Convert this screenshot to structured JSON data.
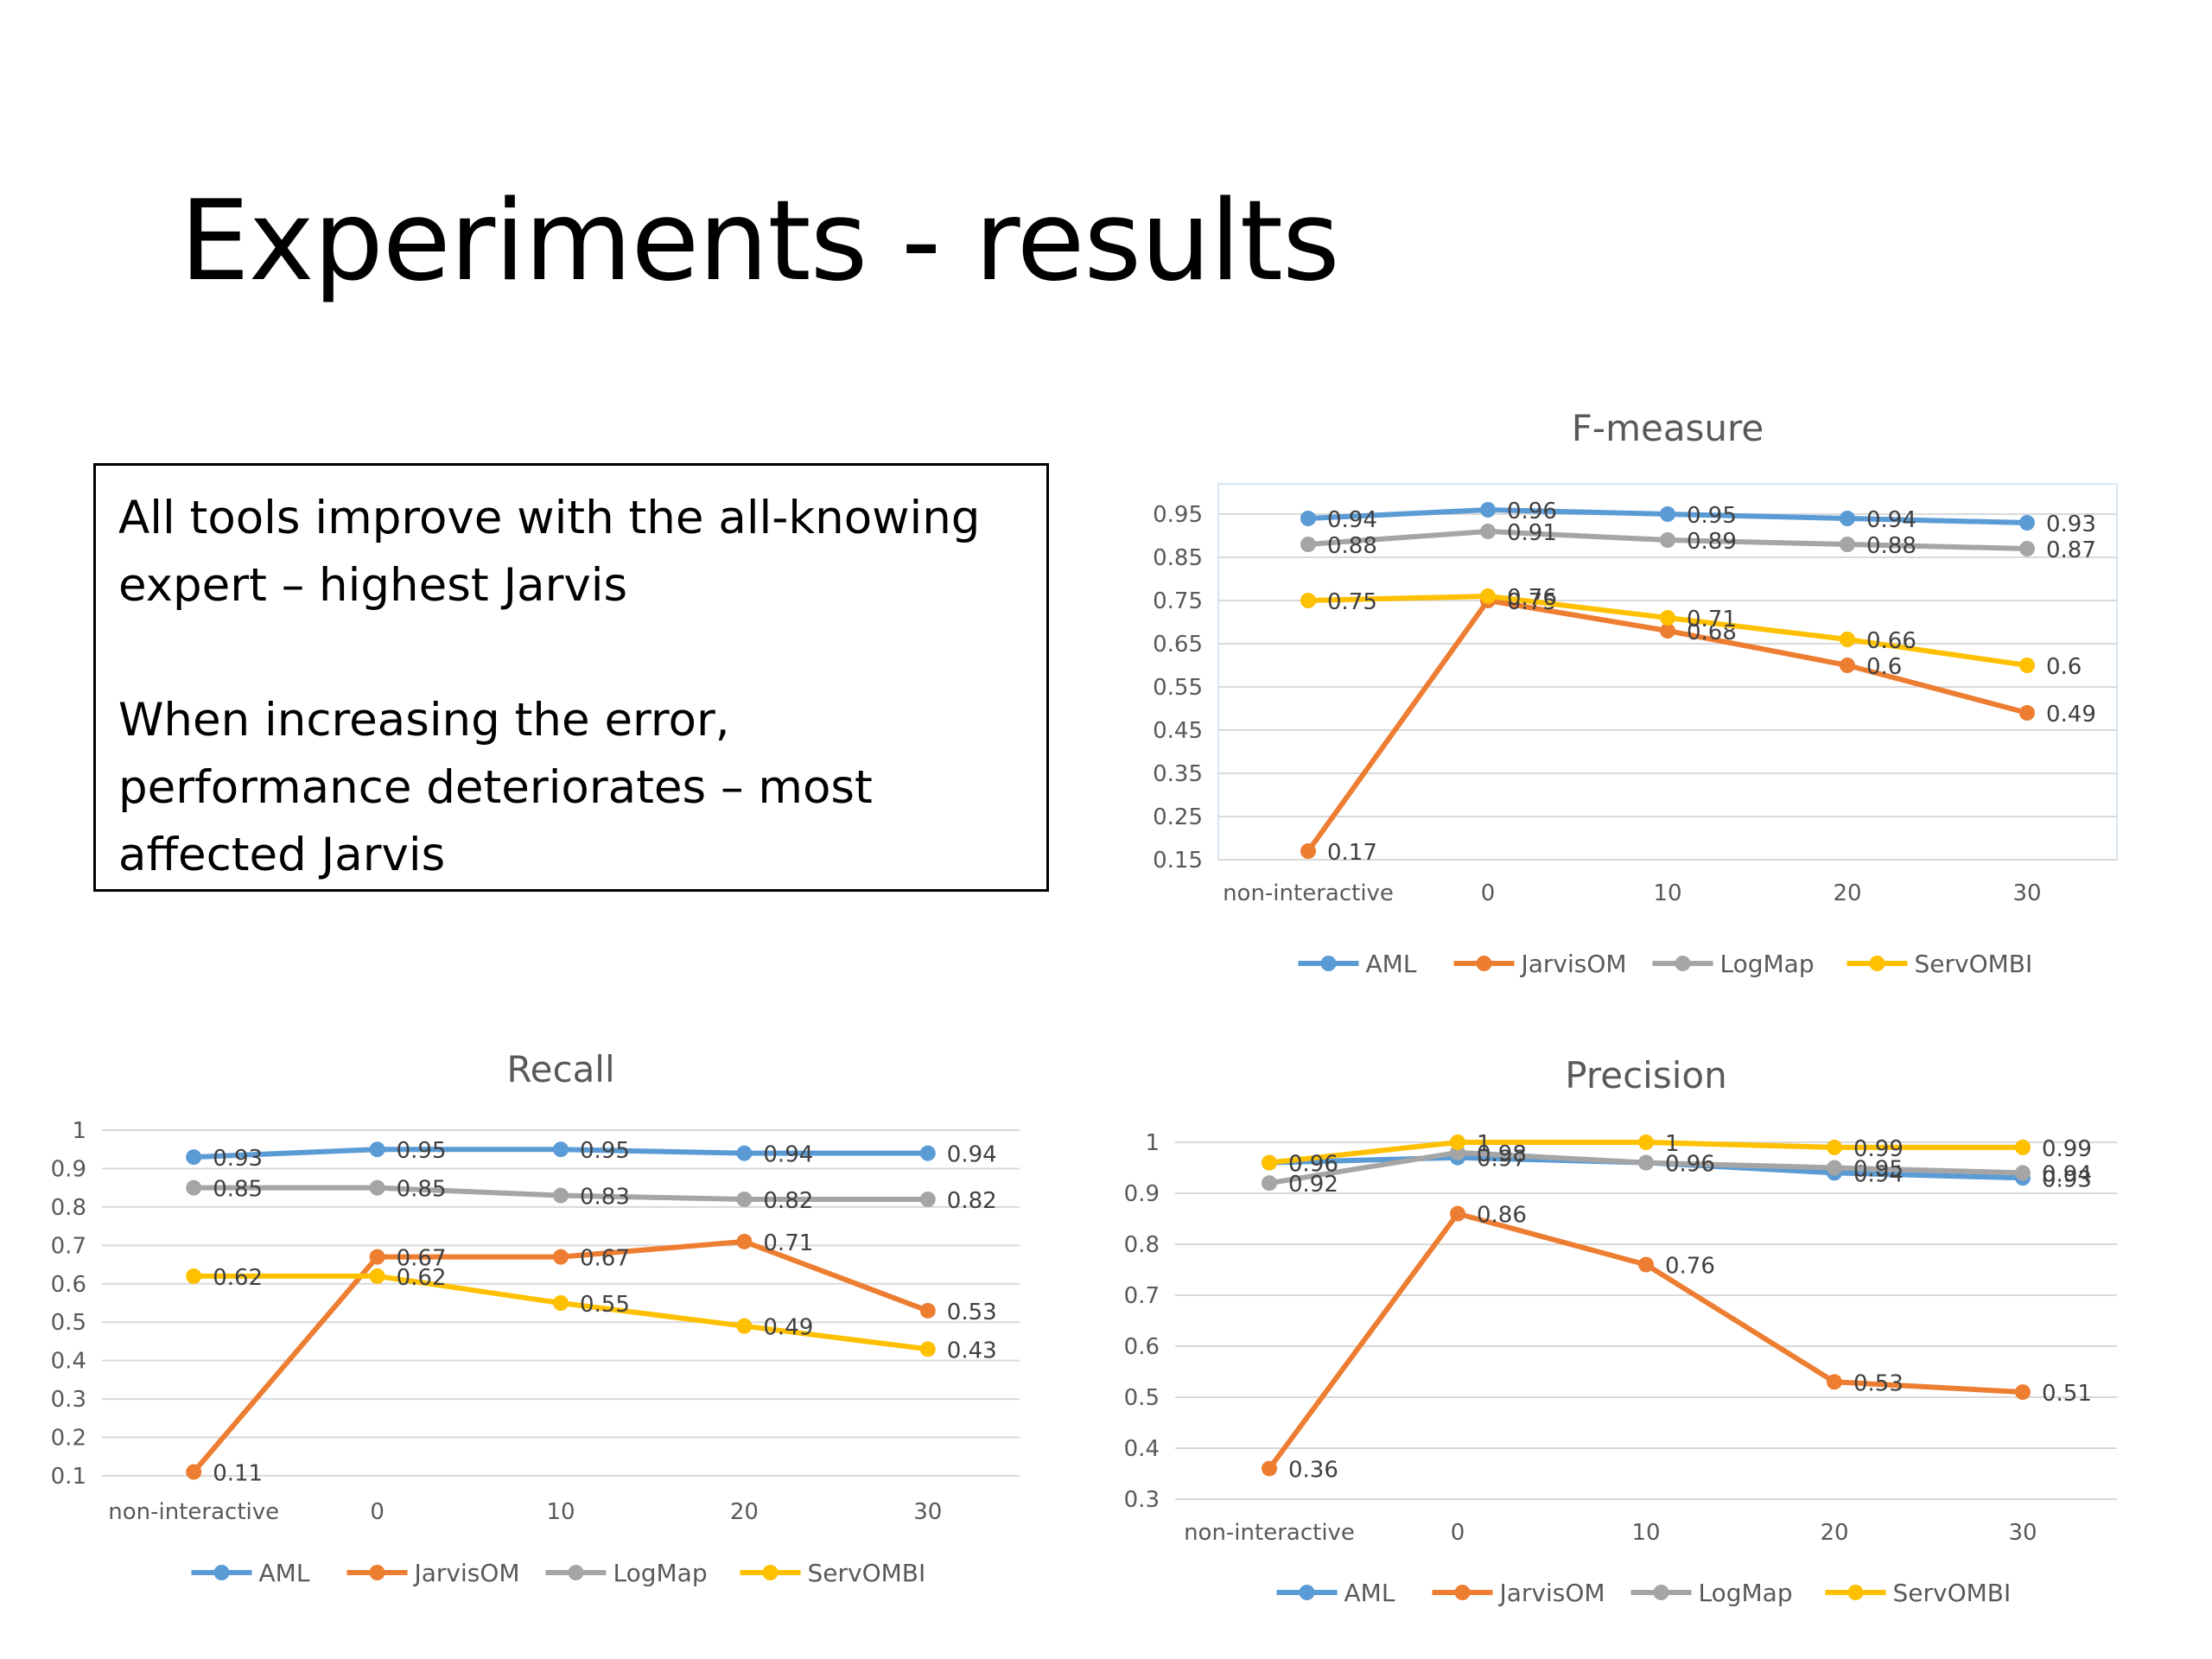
{
  "slide": {
    "title": "Experiments - results",
    "text": {
      "para1": "All tools improve with the all-knowing expert – highest Jarvis",
      "para2": "When increasing the error, performance deteriorates – most affected Jarvis"
    }
  },
  "chart_data": [
    {
      "id": "fmeasure",
      "type": "line",
      "title": "F-measure",
      "categories": [
        "non-interactive",
        "0",
        "10",
        "20",
        "30"
      ],
      "yticks": [
        "0.95",
        "0.85",
        "0.75",
        "0.65",
        "0.55",
        "0.45",
        "0.35",
        "0.25",
        "0.15"
      ],
      "ylim": [
        0.15,
        0.98
      ],
      "grid": true,
      "legend": "bottom",
      "series": [
        {
          "name": "AML",
          "color": "#5B9BD5",
          "values": [
            0.94,
            0.96,
            0.95,
            0.94,
            0.93
          ]
        },
        {
          "name": "JarvisOM",
          "color": "#ED7D31",
          "values": [
            0.17,
            0.75,
            0.68,
            0.6,
            0.49
          ]
        },
        {
          "name": "LogMap",
          "color": "#A5A5A5",
          "values": [
            0.88,
            0.91,
            0.89,
            0.88,
            0.87
          ]
        },
        {
          "name": "ServOMBI",
          "color": "#FFC000",
          "values": [
            0.75,
            0.76,
            0.71,
            0.66,
            0.6
          ]
        }
      ]
    },
    {
      "id": "recall",
      "type": "line",
      "title": "Recall",
      "categories": [
        "non-interactive",
        "0",
        "10",
        "20",
        "30"
      ],
      "yticks": [
        "1",
        "0.9",
        "0.8",
        "0.7",
        "0.6",
        "0.5",
        "0.4",
        "0.3",
        "0.2",
        "0.1"
      ],
      "ylim": [
        0.1,
        1
      ],
      "grid": true,
      "legend": "bottom",
      "series": [
        {
          "name": "AML",
          "color": "#5B9BD5",
          "values": [
            0.93,
            0.95,
            0.95,
            0.94,
            0.94
          ]
        },
        {
          "name": "JarvisOM",
          "color": "#ED7D31",
          "values": [
            0.11,
            0.67,
            0.67,
            0.71,
            0.53
          ]
        },
        {
          "name": "LogMap",
          "color": "#A5A5A5",
          "values": [
            0.85,
            0.85,
            0.83,
            0.82,
            0.82
          ]
        },
        {
          "name": "ServOMBI",
          "color": "#FFC000",
          "values": [
            0.62,
            0.62,
            0.55,
            0.49,
            0.43
          ]
        }
      ]
    },
    {
      "id": "precision",
      "type": "line",
      "title": "Precision",
      "categories": [
        "non-interactive",
        "0",
        "10",
        "20",
        "30"
      ],
      "yticks": [
        "1",
        "0.9",
        "0.8",
        "0.7",
        "0.6",
        "0.5",
        "0.4",
        "0.3"
      ],
      "ylim": [
        0.3,
        1
      ],
      "grid": true,
      "legend": "bottom",
      "series": [
        {
          "name": "AML",
          "color": "#5B9BD5",
          "values": [
            0.96,
            0.97,
            0.96,
            0.94,
            0.93
          ]
        },
        {
          "name": "JarvisOM",
          "color": "#ED7D31",
          "values": [
            0.36,
            0.86,
            0.76,
            0.53,
            0.51
          ]
        },
        {
          "name": "LogMap",
          "color": "#A5A5A5",
          "values": [
            0.92,
            0.98,
            0.96,
            0.95,
            0.94
          ]
        },
        {
          "name": "ServOMBI",
          "color": "#FFC000",
          "values": [
            0.96,
            1,
            1,
            0.99,
            0.99
          ]
        }
      ]
    }
  ]
}
